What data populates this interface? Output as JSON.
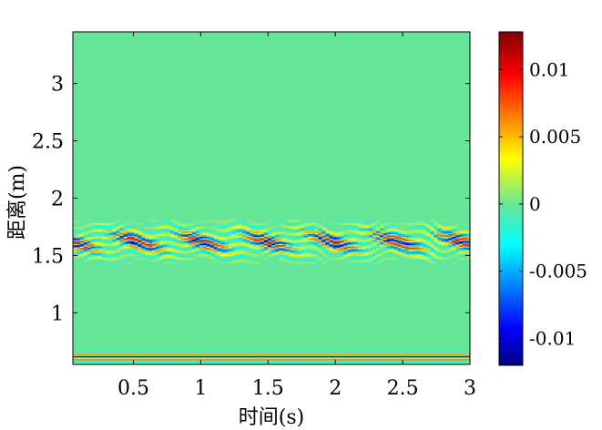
{
  "chart_data": {
    "type": "heatmap",
    "title": "",
    "xlabel": "时间(s)",
    "ylabel": "距离(m)",
    "xlim": [
      0.05,
      3.0
    ],
    "ylim": [
      0.55,
      3.45
    ],
    "x_ticks": [
      {
        "value": 0.5,
        "label": "0.5"
      },
      {
        "value": 1.0,
        "label": "1"
      },
      {
        "value": 1.5,
        "label": "1.5"
      },
      {
        "value": 2.0,
        "label": "2"
      },
      {
        "value": 2.5,
        "label": "2.5"
      },
      {
        "value": 3.0,
        "label": "3"
      }
    ],
    "y_ticks": [
      {
        "value": 1.0,
        "label": "1"
      },
      {
        "value": 1.5,
        "label": "1.5"
      },
      {
        "value": 2.0,
        "label": "2"
      },
      {
        "value": 2.5,
        "label": "2.5"
      },
      {
        "value": 3.0,
        "label": "3"
      }
    ],
    "colormap": "jet",
    "colorbar": {
      "range": [
        -0.012,
        0.0128
      ],
      "ticks": [
        {
          "value": 0.01,
          "label": "0.01"
        },
        {
          "value": 0.005,
          "label": "0.005"
        },
        {
          "value": 0,
          "label": "0"
        },
        {
          "value": -0.005,
          "label": "-0.005"
        },
        {
          "value": -0.01,
          "label": "-0.01"
        }
      ]
    },
    "background_value": 0,
    "bands": [
      {
        "y_center": 1.62,
        "half_width": 0.15,
        "amplitude": 0.011,
        "description": "target echo band"
      },
      {
        "y_center": 0.61,
        "half_width": 0.06,
        "amplitude": 0.008,
        "description": "direct-coupling band"
      }
    ]
  },
  "colors": {
    "axis": "#000000",
    "colormap_stops": [
      "#000080",
      "#0000ff",
      "#00ffff",
      "#66e699",
      "#ffff00",
      "#ff0000",
      "#800000"
    ]
  }
}
